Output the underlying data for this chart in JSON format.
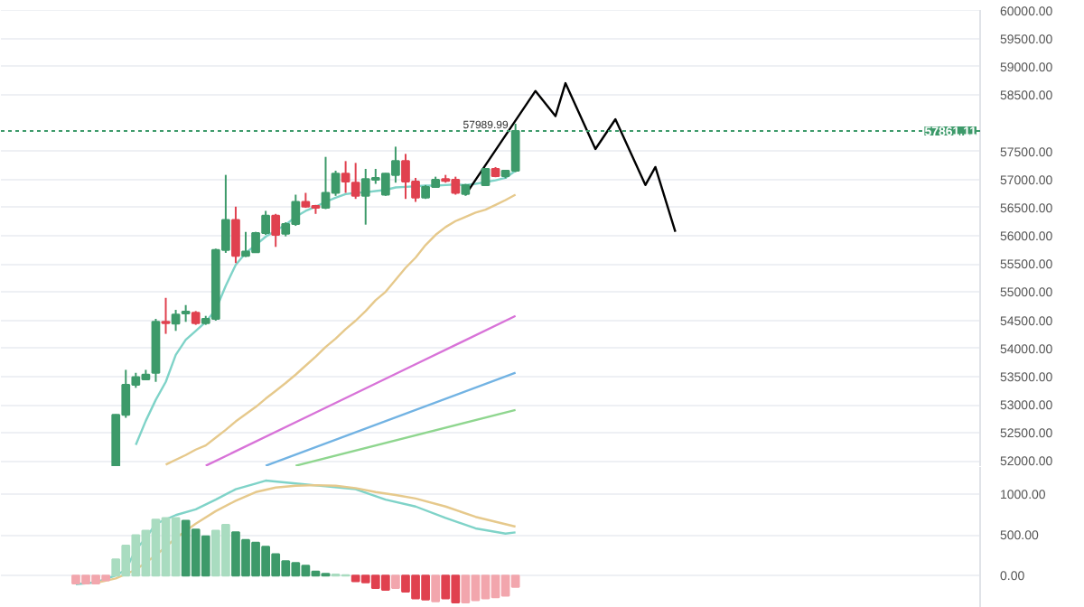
{
  "chart_data": [
    {
      "type": "candlestick",
      "tick_labels": "y",
      "grid": "y",
      "categories": [
        null,
        null,
        null,
        null,
        null,
        null,
        null,
        null,
        null,
        null,
        null,
        null,
        null,
        null,
        null,
        null,
        null,
        null,
        null,
        null,
        null,
        null,
        null,
        null,
        null,
        null,
        null,
        null,
        null,
        null,
        null,
        null,
        null,
        null,
        null,
        null,
        null,
        null,
        null,
        null,
        null,
        null,
        null,
        null,
        null,
        null,
        null,
        null,
        null,
        null,
        null,
        null,
        null,
        null,
        null,
        null,
        null,
        null,
        null,
        null,
        null,
        null,
        null,
        null,
        null,
        null,
        null,
        null,
        null,
        null,
        null,
        null,
        null,
        null,
        null,
        null,
        null,
        null,
        null,
        null,
        null,
        null,
        null,
        null,
        null,
        null,
        null,
        null,
        null,
        null,
        null,
        null,
        null,
        null,
        null,
        null,
        null,
        null
      ],
      "ohlc": [
        null,
        null,
        null,
        null,
        null,
        null,
        null,
        null,
        null,
        null,
        null,
        [
          51917,
          52830,
          51900,
          52821
        ],
        [
          52821,
          53620,
          52768,
          53354
        ],
        [
          53354,
          53567,
          53300,
          53492
        ],
        [
          53450,
          53620,
          53440,
          53535
        ],
        [
          53567,
          54525,
          53407,
          54472
        ],
        [
          54472,
          54898,
          54259,
          54450
        ],
        [
          54440,
          54685,
          54312,
          54600
        ],
        [
          54620,
          54770,
          54472,
          54653
        ],
        [
          54632,
          54664,
          54419,
          54450
        ],
        [
          54450,
          54578,
          54419,
          54525
        ],
        [
          54525,
          55771,
          54493,
          55750
        ],
        [
          55750,
          57081,
          55697,
          56283
        ],
        [
          56283,
          56517,
          55516,
          55644
        ],
        [
          55644,
          56070,
          55622,
          55719
        ],
        [
          55708,
          56070,
          55697,
          56048
        ],
        [
          56048,
          56442,
          56016,
          56357
        ],
        [
          56357,
          56389,
          55803,
          56016
        ],
        [
          56037,
          56240,
          55990,
          56208
        ],
        [
          56208,
          56730,
          56176,
          56602
        ],
        [
          56602,
          56762,
          56496,
          56517
        ],
        [
          56528,
          56549,
          56389,
          56496
        ],
        [
          56496,
          57401,
          56474,
          56762
        ],
        [
          56762,
          57156,
          56709,
          57102
        ],
        [
          57102,
          57326,
          56762,
          56964
        ],
        [
          56943,
          57294,
          56655,
          56709
        ],
        [
          56709,
          57188,
          56198,
          57007
        ],
        [
          56996,
          57188,
          56922,
          57028
        ],
        [
          56730,
          57113,
          56709,
          57102
        ],
        [
          57081,
          57582,
          56943,
          57326
        ],
        [
          57326,
          57454,
          56655,
          56964
        ],
        [
          56964,
          57028,
          56602,
          56677
        ],
        [
          56677,
          56900,
          56655,
          56868
        ],
        [
          56868,
          57049,
          56868,
          56996
        ],
        [
          57007,
          57081,
          56943,
          56975
        ],
        [
          56996,
          57049,
          56730,
          56762
        ],
        [
          56741,
          56922,
          56709,
          56900
        ],
        null,
        [
          56900,
          57200,
          56890,
          57188
        ],
        [
          57188,
          57220,
          57040,
          57060
        ],
        [
          57060,
          57170,
          57020,
          57156
        ],
        [
          57156,
          57989.99,
          57130,
          57861.11
        ],
        null,
        null,
        null,
        null,
        null,
        null,
        null,
        null,
        null,
        null,
        null,
        null,
        null,
        null,
        null,
        null,
        null,
        null,
        null,
        null,
        null,
        null,
        null,
        null,
        null,
        null,
        null,
        null,
        null,
        null,
        null,
        null,
        null,
        null,
        null,
        null,
        null,
        null,
        null,
        null,
        null,
        null,
        null,
        null,
        null,
        null
      ],
      "colors": [
        null,
        null,
        null,
        null,
        null,
        null,
        null,
        null,
        null,
        null,
        null,
        "#3d9a6a",
        "#3d9a6a",
        "#3d9a6a",
        "#3d9a6a",
        "#3d9a6a",
        "#e0414f",
        "#3d9a6a",
        "#3d9a6a",
        "#e0414f",
        "#3d9a6a",
        "#3d9a6a",
        "#3d9a6a",
        "#e0414f",
        "#3d9a6a",
        "#3d9a6a",
        "#3d9a6a",
        "#e0414f",
        "#3d9a6a",
        "#3d9a6a",
        "#e0414f",
        "#e0414f",
        "#3d9a6a",
        "#3d9a6a",
        "#e0414f",
        "#e0414f",
        "#3d9a6a",
        "#3d9a6a",
        "#3d9a6a",
        "#3d9a6a",
        "#e0414f",
        "#e0414f",
        "#3d9a6a",
        "#3d9a6a",
        "#e0414f",
        "#e0414f",
        "#3d9a6a",
        null,
        "#3d9a6a",
        "#e0414f",
        "#3d9a6a",
        "#3d9a6a",
        null,
        null,
        null,
        null,
        null,
        null,
        null,
        null,
        null,
        null,
        null,
        null,
        null,
        null,
        null,
        null,
        null,
        null,
        null,
        null,
        null,
        null,
        null,
        null,
        null,
        null,
        null,
        null,
        null,
        null,
        null,
        null,
        null,
        null,
        null,
        null,
        null,
        null,
        null,
        null,
        null,
        null,
        null,
        null,
        null,
        null
      ],
      "series": [
        {
          "type": "line",
          "color": "#7fd3c8",
          "values": [
            null,
            null,
            null,
            null,
            null,
            null,
            null,
            null,
            null,
            null,
            null,
            null,
            null,
            52289,
            52715,
            53088,
            53407,
            53886,
            54153,
            54312,
            54472,
            54685,
            55111,
            55484,
            55697,
            55835,
            55984,
            56091,
            56197,
            56336,
            56442,
            56517,
            56602,
            56677,
            56741,
            56762,
            56772,
            56794,
            56815,
            56858,
            56868,
            56879,
            56890,
            56890,
            56900,
            56911,
            56900,
            56922,
            56954,
            56985,
            57028,
            57156,
            null,
            null,
            null,
            null,
            null,
            null,
            null,
            null,
            null,
            null,
            null,
            null,
            null,
            null,
            null,
            null,
            null,
            null,
            null,
            null,
            null,
            null,
            null,
            null,
            null,
            null,
            null,
            null,
            null,
            null,
            null,
            null,
            null,
            null,
            null,
            null,
            null,
            null,
            null,
            null,
            null,
            null,
            null,
            null,
            null,
            null
          ]
        },
        {
          "type": "line",
          "color": "#e6c98c",
          "values": [
            null,
            null,
            null,
            null,
            null,
            null,
            null,
            null,
            null,
            null,
            null,
            null,
            null,
            null,
            null,
            null,
            51937,
            52023,
            52108,
            52204,
            52278,
            52417,
            52555,
            52704,
            52832,
            52960,
            53109,
            53247,
            53386,
            53535,
            53695,
            53854,
            54025,
            54174,
            54344,
            54493,
            54664,
            54856,
            55005,
            55218,
            55431,
            55612,
            55835,
            56016,
            56155,
            56261,
            56336,
            56410,
            56464,
            56549,
            56634,
            56730,
            null,
            null,
            null,
            null,
            null,
            null,
            null,
            null,
            null,
            null,
            null,
            null,
            null,
            null,
            null,
            null,
            null,
            null,
            null,
            null,
            null,
            null,
            null,
            null,
            null,
            null,
            null,
            null,
            null,
            null,
            null,
            null,
            null,
            null,
            null,
            null,
            null,
            null,
            null,
            null,
            null,
            null,
            null,
            null,
            null,
            null
          ]
        },
        {
          "type": "line",
          "color": "#d873d8",
          "values": [
            null,
            null,
            null,
            null,
            null,
            null,
            null,
            null,
            null,
            null,
            null,
            null,
            null,
            null,
            null,
            null,
            null,
            null,
            null,
            null,
            51917,
            null,
            null,
            null,
            null,
            null,
            null,
            null,
            null,
            null,
            null,
            52861,
            null,
            null,
            null,
            null,
            null,
            null,
            null,
            null,
            null,
            53719,
            null,
            null,
            null,
            null,
            null,
            null,
            null,
            null,
            null,
            54578,
            null,
            null,
            null,
            null,
            null,
            null,
            null,
            null,
            null,
            null,
            null,
            null,
            null,
            null,
            null,
            null,
            null,
            null,
            null,
            null,
            null,
            null,
            null,
            null,
            null,
            null,
            null,
            null,
            null,
            null,
            null,
            null,
            null,
            null,
            null,
            null,
            null,
            null,
            null,
            null,
            null,
            null,
            null,
            null,
            null,
            null
          ]
        },
        {
          "type": "line",
          "color": "#72b3e3",
          "values": [
            null,
            null,
            null,
            null,
            null,
            null,
            null,
            null,
            null,
            null,
            null,
            null,
            null,
            null,
            null,
            null,
            null,
            null,
            null,
            null,
            null,
            null,
            null,
            null,
            null,
            null,
            51917,
            null,
            null,
            null,
            null,
            null,
            null,
            null,
            null,
            null,
            null,
            null,
            null,
            null,
            null,
            null,
            null,
            null,
            null,
            null,
            null,
            null,
            null,
            null,
            null,
            53567,
            null,
            null,
            null,
            null,
            null,
            null,
            null,
            null,
            null,
            null,
            null,
            null,
            null,
            null,
            null,
            null,
            null,
            null,
            null,
            null,
            null,
            null,
            null,
            null,
            null,
            null,
            null,
            null,
            null,
            null,
            null,
            null,
            null,
            null,
            null,
            null,
            null,
            null,
            null,
            null,
            null,
            null,
            null,
            null,
            null,
            null
          ]
        },
        {
          "type": "line",
          "color": "#8fd68f",
          "values": [
            null,
            null,
            null,
            null,
            null,
            null,
            null,
            null,
            null,
            null,
            null,
            null,
            null,
            null,
            null,
            null,
            null,
            null,
            null,
            null,
            null,
            null,
            null,
            null,
            null,
            null,
            null,
            null,
            null,
            51917,
            null,
            null,
            null,
            null,
            null,
            null,
            null,
            null,
            null,
            null,
            null,
            null,
            null,
            null,
            null,
            null,
            null,
            null,
            null,
            null,
            null,
            52906,
            null,
            null,
            null,
            null,
            null,
            null,
            null,
            null,
            null,
            null,
            null,
            null,
            null,
            null,
            null,
            null,
            null,
            null,
            null,
            null,
            null,
            null,
            null,
            null,
            null,
            null,
            null,
            null,
            null,
            null,
            null,
            null,
            null,
            null,
            null,
            null,
            null,
            null,
            null,
            null,
            null,
            null,
            null,
            null,
            null,
            null
          ]
        },
        {
          "type": "line",
          "color": "#000000",
          "values": [
            null,
            null,
            null,
            null,
            null,
            null,
            null,
            null,
            null,
            null,
            null,
            null,
            null,
            null,
            null,
            null,
            null,
            null,
            null,
            null,
            null,
            null,
            null,
            null,
            null,
            null,
            null,
            null,
            null,
            null,
            null,
            null,
            null,
            null,
            null,
            null,
            null,
            null,
            null,
            null,
            null,
            null,
            null,
            null,
            null,
            null,
            56729,
            null,
            null,
            null,
            null,
            null,
            null,
            58572,
            null,
            58125,
            58710,
            null,
            null,
            57540,
            null,
            58070,
            null,
            null,
            56901,
            57221,
            null,
            56070,
            null,
            null,
            null,
            null,
            null,
            null,
            null,
            null,
            null,
            null,
            null,
            null,
            null,
            null,
            null,
            null,
            null,
            null,
            null,
            null,
            null,
            null,
            null,
            null,
            null,
            null,
            null,
            null,
            null,
            null
          ]
        }
      ],
      "ylim": [
        51895,
        60010
      ],
      "yticks": [
        {
          "value": 52000,
          "label": "52000.00"
        },
        {
          "value": 52500,
          "label": "52500.00"
        },
        {
          "value": 53000,
          "label": "53000.00"
        },
        {
          "value": 53500,
          "label": "53500.00"
        },
        {
          "value": 54000,
          "label": "54000.00"
        },
        {
          "value": 54500,
          "label": "54500.00"
        },
        {
          "value": 55000,
          "label": "55000.00"
        },
        {
          "value": 55500,
          "label": "55500.00"
        },
        {
          "value": 56000,
          "label": "56000.00"
        },
        {
          "value": 56500,
          "label": "56500.00"
        },
        {
          "value": 57000,
          "label": "57000.00"
        },
        {
          "value": 57500,
          "label": "57500.00"
        },
        {
          "value": 58500,
          "label": "58500.00"
        },
        {
          "value": 59000,
          "label": "59000.00"
        },
        {
          "value": 59500,
          "label": "59500.00"
        },
        {
          "value": 60000,
          "label": "60000.00"
        }
      ],
      "ref_lines": [
        {
          "axis": "y",
          "value": 57861.11,
          "label": "57861.11",
          "color": "#3d9a6a",
          "line_style": "dotted"
        }
      ],
      "annotations": [
        {
          "text": "57989.99",
          "y": 57989.99
        }
      ]
    },
    {
      "type": "bar",
      "tick_labels": "y",
      "grid": "y",
      "categories": [
        null,
        null,
        null,
        null,
        null,
        null,
        null,
        null,
        null,
        null,
        null,
        null,
        null,
        null,
        null,
        null,
        null,
        null,
        null,
        null,
        null,
        null,
        null,
        null,
        null,
        null,
        null,
        null,
        null,
        null,
        null,
        null,
        null,
        null,
        null,
        null,
        null,
        null,
        null,
        null,
        null,
        null,
        null,
        null,
        null,
        null,
        null,
        null,
        null,
        null,
        null,
        null,
        null,
        null,
        null,
        null,
        null,
        null,
        null,
        null,
        null,
        null,
        null,
        null,
        null,
        null,
        null,
        null,
        null,
        null,
        null,
        null,
        null,
        null,
        null,
        null,
        null,
        null,
        null,
        null,
        null,
        null,
        null,
        null,
        null,
        null,
        null,
        null,
        null,
        null,
        null,
        null,
        null,
        null,
        null,
        null,
        null,
        null
      ],
      "values": [
        null,
        null,
        null,
        null,
        null,
        null,
        null,
        -100,
        -100,
        -100,
        -60,
        199,
        369,
        497,
        554,
        689,
        710,
        710,
        675,
        568,
        483,
        554,
        625,
        533,
        440,
        405,
        355,
        263,
        178,
        156,
        121,
        50,
        21,
        14,
        5,
        -71,
        -85,
        -156,
        -178,
        -156,
        -199,
        -284,
        -298,
        -320,
        -284,
        -334,
        -334,
        -305,
        -284,
        -270,
        -249,
        -142,
        null,
        null,
        null,
        null,
        null,
        null,
        null,
        null,
        null,
        null,
        null,
        null,
        null,
        null,
        null,
        null,
        null,
        null,
        null,
        null,
        null,
        null,
        null,
        null,
        null,
        null,
        null,
        null,
        null,
        null,
        null,
        null,
        null,
        null,
        null,
        null,
        null,
        null,
        null,
        null,
        null,
        null,
        null,
        null,
        null,
        null
      ],
      "colors": [
        null,
        null,
        null,
        null,
        null,
        null,
        null,
        "#f2a6ad",
        "#f2a6ad",
        "#f2a6ad",
        "#f2a6ad",
        "#a9dcc0",
        "#a9dcc0",
        "#a9dcc0",
        "#a9dcc0",
        "#a9dcc0",
        "#a9dcc0",
        "#a9dcc0",
        "#3d9a6a",
        "#3d9a6a",
        "#3d9a6a",
        "#a9dcc0",
        "#a9dcc0",
        "#3d9a6a",
        "#3d9a6a",
        "#3d9a6a",
        "#3d9a6a",
        "#3d9a6a",
        "#3d9a6a",
        "#3d9a6a",
        "#3d9a6a",
        "#3d9a6a",
        "#3d9a6a",
        "#a9dcc0",
        "#a9dcc0",
        "#e0414f",
        "#e0414f",
        "#e0414f",
        "#e0414f",
        "#f2a6ad",
        "#e0414f",
        "#e0414f",
        "#e0414f",
        "#f2a6ad",
        "#e0414f",
        "#e0414f",
        "#f2a6ad",
        "#f2a6ad",
        "#f2a6ad",
        "#f2a6ad",
        "#f2a6ad",
        "#f2a6ad",
        null,
        null,
        null,
        null,
        null,
        null,
        null,
        null,
        null,
        null,
        null,
        null,
        null,
        null,
        null,
        null,
        null,
        null,
        null,
        null,
        null,
        null,
        null,
        null,
        null,
        null,
        null,
        null,
        null,
        null,
        null,
        null,
        null,
        null,
        null,
        null,
        null,
        null,
        null,
        null,
        null,
        null,
        null,
        null,
        null,
        null
      ],
      "series": [
        {
          "type": "line",
          "color": "#7fd3c8",
          "values": [
            null,
            null,
            null,
            null,
            null,
            null,
            null,
            -107,
            null,
            -85,
            null,
            0,
            71,
            320,
            462,
            639,
            null,
            746,
            null,
            817,
            null,
            937,
            null,
            1065,
            null,
            1136,
            1172,
            null,
            null,
            1136,
            null,
            null,
            1101,
            null,
            null,
            1065,
            null,
            null,
            937,
            null,
            null,
            852,
            null,
            null,
            710,
            null,
            null,
            582,
            null,
            null,
            518,
            533,
            null,
            null,
            null,
            null,
            null,
            null,
            null,
            null,
            null,
            null,
            null,
            null,
            null,
            null,
            null,
            null,
            null,
            null,
            null,
            null,
            null,
            null,
            null,
            null,
            null,
            null,
            null,
            null,
            null,
            null,
            null,
            null,
            null,
            null,
            null,
            null,
            null,
            null,
            null,
            null,
            null,
            null,
            null,
            null,
            null,
            null
          ]
        },
        {
          "type": "line",
          "color": "#e6c98c",
          "values": [
            null,
            null,
            null,
            null,
            null,
            null,
            null,
            null,
            null,
            -92,
            null,
            -36,
            null,
            71,
            null,
            249,
            null,
            462,
            null,
            639,
            null,
            795,
            null,
            923,
            null,
            1030,
            null,
            1086,
            null,
            1108,
            null,
            1115,
            null,
            1108,
            null,
            1079,
            null,
            1030,
            null,
            994,
            null,
            951,
            null,
            null,
            852,
            null,
            null,
            724,
            null,
            null,
            null,
            604,
            null,
            null,
            null,
            null,
            null,
            null,
            null,
            null,
            null,
            null,
            null,
            null,
            null,
            null,
            null,
            null,
            null,
            null,
            null,
            null,
            null,
            null,
            null,
            null,
            null,
            null,
            null,
            null,
            null,
            null,
            null,
            null,
            null,
            null,
            null,
            null,
            null,
            null,
            null,
            null,
            null,
            null,
            null,
            null,
            null,
            null
          ]
        }
      ],
      "ylim": [
        -400,
        1340
      ],
      "yticks": [
        {
          "value": 0,
          "label": "0.00"
        },
        {
          "value": 500,
          "label": "500.00"
        },
        {
          "value": 1000,
          "label": "1000.00"
        }
      ]
    }
  ]
}
